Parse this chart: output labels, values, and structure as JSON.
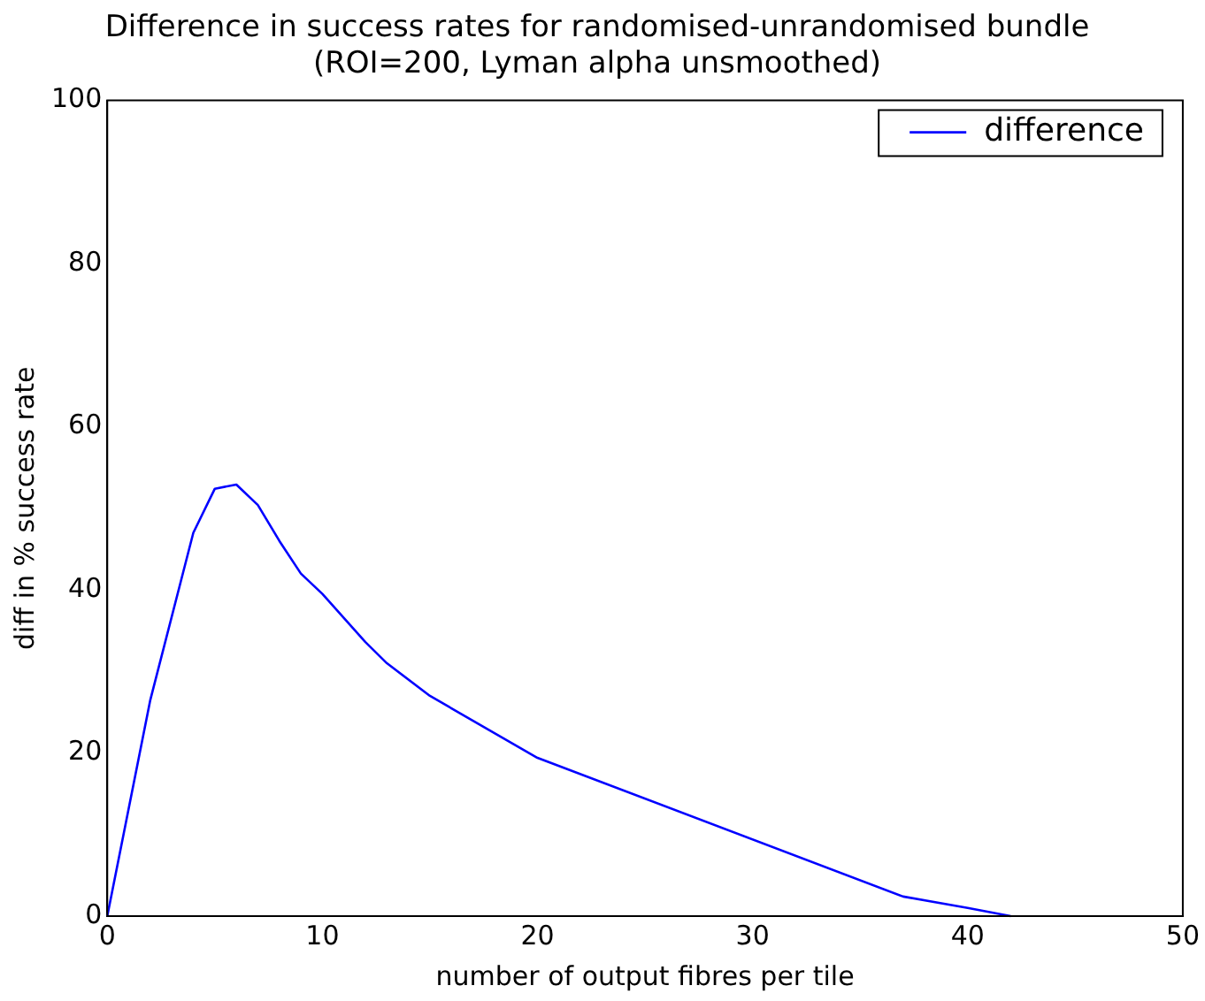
{
  "chart_data": {
    "type": "line",
    "title": [
      "Difference in success rates for randomised-unrandomised bundle",
      "(ROI=200, Lyman alpha unsmoothed)"
    ],
    "xlabel": "number of output fibres per tile",
    "ylabel": "diff in % success rate",
    "x": [
      0,
      2,
      4,
      5,
      6,
      7,
      8,
      9,
      10,
      12,
      13,
      15,
      20,
      37,
      40,
      42
    ],
    "series": [
      {
        "name": "difference",
        "color": "#0000ff",
        "values": [
          0,
          26.5,
          47,
          52.4,
          52.9,
          50.4,
          46,
          42,
          39.5,
          33.6,
          31,
          27,
          19.4,
          2.4,
          1,
          0
        ]
      }
    ],
    "xlim": [
      0,
      50
    ],
    "xticks": [
      0,
      10,
      20,
      30,
      40,
      50
    ],
    "ylim": [
      0,
      100
    ],
    "yticks": [
      0,
      20,
      40,
      60,
      80,
      100
    ],
    "grid": false,
    "legend": "top right",
    "marker": "none",
    "line_style": "solid"
  }
}
